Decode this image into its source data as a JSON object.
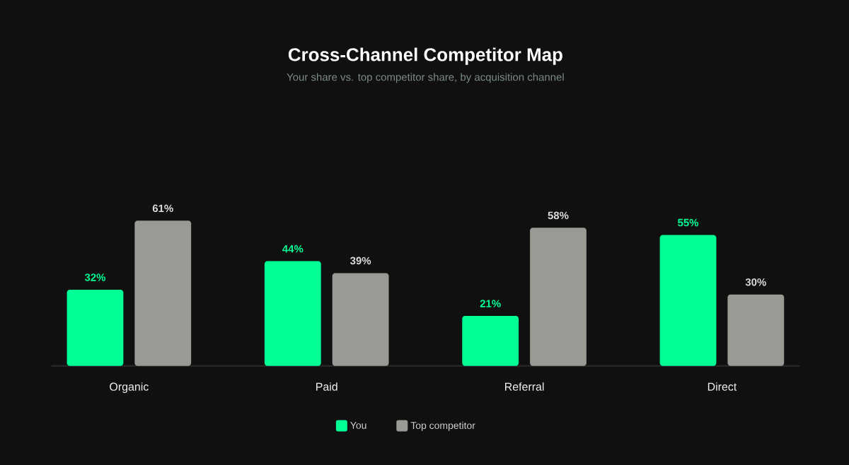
{
  "chart_data": {
    "type": "bar",
    "title": "Cross-Channel Competitor Map",
    "subtitle": "Your share vs. top competitor share, by acquisition channel",
    "categories": [
      "Organic",
      "Paid",
      "Referral",
      "Direct"
    ],
    "series": [
      {
        "name": "You",
        "color": "#00ff95",
        "values": [
          32,
          44,
          21,
          55
        ],
        "value_labels": [
          "32%",
          "44%",
          "21%",
          "55%"
        ]
      },
      {
        "name": "Top competitor",
        "color": "#9a9a94",
        "values": [
          61,
          39,
          58,
          30
        ],
        "value_labels": [
          "61%",
          "39%",
          "58%",
          "30%"
        ]
      }
    ],
    "legend": "bottom"
  }
}
